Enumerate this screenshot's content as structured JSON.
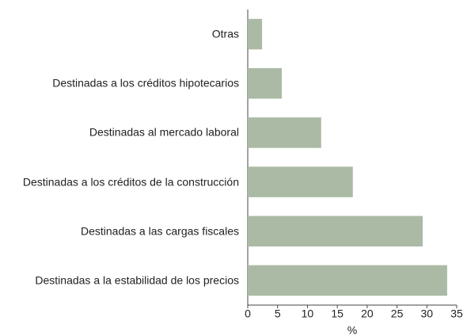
{
  "chart_data": {
    "type": "barh",
    "categories": [
      "Otras",
      "Destinadas a los créditos hipotecarios",
      "Destinadas al mercado laboral",
      "Destinadas a los créditos de la construcción",
      "Destinadas a las cargas fiscales",
      "Destinadas a la estabilidad de los precios"
    ],
    "values": [
      2.4,
      5.7,
      12.3,
      17.6,
      29.3,
      33.4
    ],
    "color": "#abbaa5",
    "xlabel": "%",
    "xlim": [
      0,
      35
    ],
    "xticks": [
      0,
      5,
      10,
      15,
      20,
      25,
      30,
      35
    ],
    "grid": false
  }
}
